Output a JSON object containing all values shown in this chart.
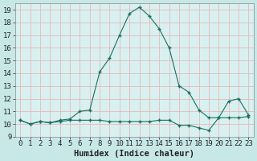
{
  "line1_x": [
    0,
    1,
    2,
    3,
    4,
    5,
    6,
    7,
    8,
    9,
    10,
    11,
    12,
    13,
    14,
    15,
    16,
    17,
    18,
    19,
    20,
    21,
    22,
    23
  ],
  "line1_y": [
    10.3,
    10.0,
    10.2,
    10.1,
    10.3,
    10.4,
    11.0,
    11.1,
    14.1,
    15.2,
    17.0,
    18.7,
    19.2,
    18.5,
    17.5,
    16.0,
    13.0,
    12.5,
    11.1,
    10.5,
    10.5,
    11.8,
    12.0,
    10.7
  ],
  "line2_x": [
    0,
    1,
    2,
    3,
    4,
    5,
    6,
    7,
    8,
    9,
    10,
    11,
    12,
    13,
    14,
    15,
    16,
    17,
    18,
    19,
    20,
    21,
    22,
    23
  ],
  "line2_y": [
    10.3,
    10.0,
    10.2,
    10.1,
    10.2,
    10.3,
    10.3,
    10.3,
    10.3,
    10.2,
    10.2,
    10.2,
    10.2,
    10.2,
    10.3,
    10.3,
    9.9,
    9.9,
    9.7,
    9.5,
    10.5,
    10.5,
    10.5,
    10.6
  ],
  "line_color": "#1a7060",
  "bg_color": "#c8e8e8",
  "plot_bg_color": "#d8f0f0",
  "grid_color": "#e8b8b8",
  "xlabel": "Humidex (Indice chaleur)",
  "xlim": [
    -0.5,
    23.5
  ],
  "ylim": [
    9.0,
    19.5
  ],
  "yticks": [
    9,
    10,
    11,
    12,
    13,
    14,
    15,
    16,
    17,
    18,
    19
  ],
  "xticks": [
    0,
    1,
    2,
    3,
    4,
    5,
    6,
    7,
    8,
    9,
    10,
    11,
    12,
    13,
    14,
    15,
    16,
    17,
    18,
    19,
    20,
    21,
    22,
    23
  ],
  "tick_fontsize": 6.5,
  "xlabel_fontsize": 7.5
}
